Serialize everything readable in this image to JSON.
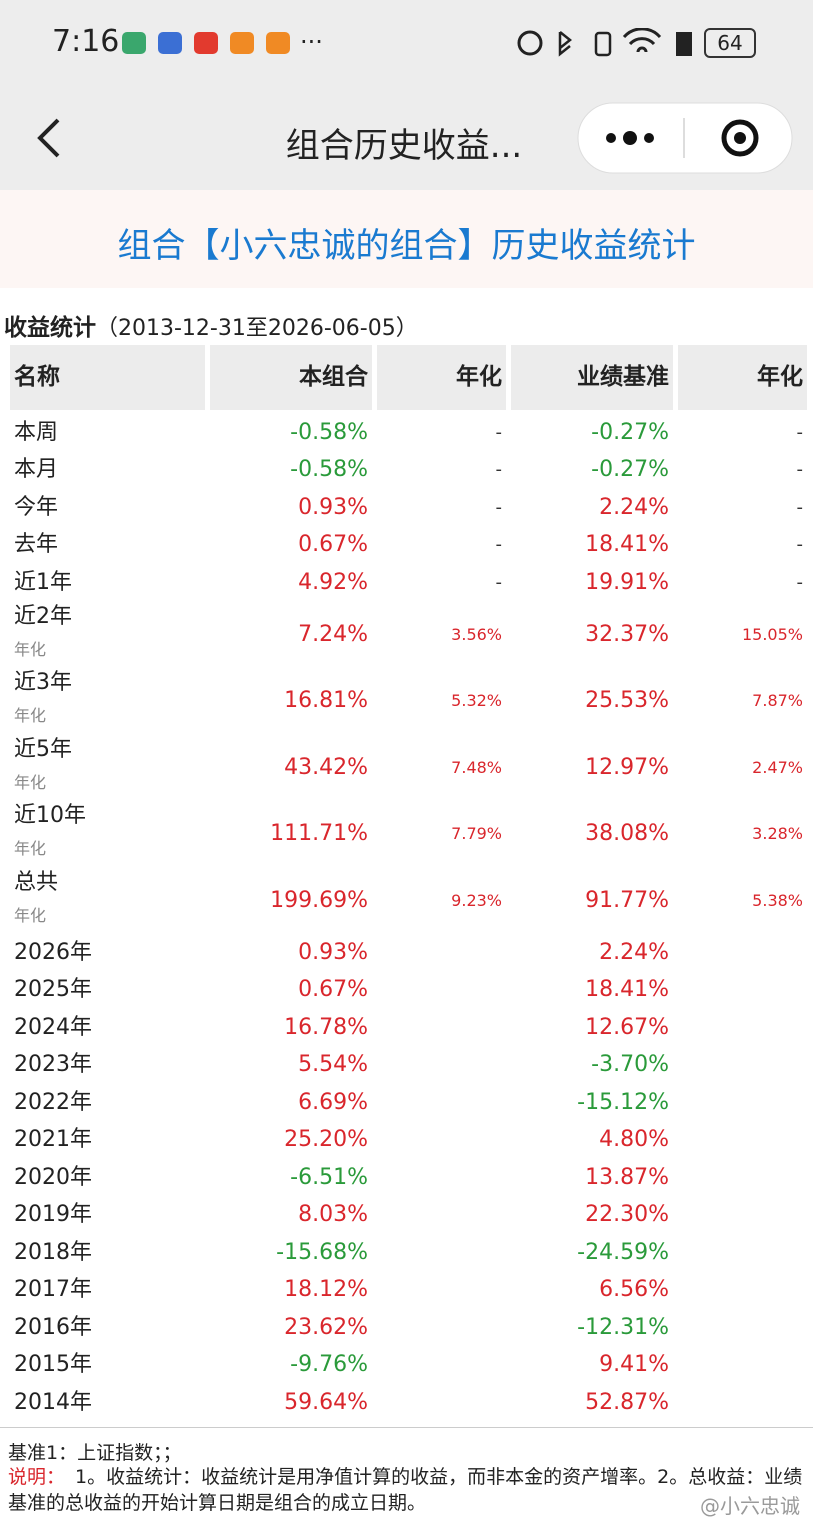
{
  "status_bar": {
    "time": "7:16",
    "more": "···",
    "battery": "64"
  },
  "nav": {
    "title": "组合历史收益..."
  },
  "banner": {
    "title": "组合【小六忠诚的组合】历史收益统计"
  },
  "section": {
    "title": "收益统计",
    "range": "（2013-12-31至2026-06-05）"
  },
  "table": {
    "headers": [
      "名称",
      "本组合",
      "年化",
      "业绩基准",
      "年化"
    ],
    "rows": [
      {
        "name": "本周",
        "portfolio": "-0.58%",
        "annual": "-",
        "benchmark": "-0.27%",
        "benchmark_annual": "-"
      },
      {
        "name": "本月",
        "portfolio": "-0.58%",
        "annual": "-",
        "benchmark": "-0.27%",
        "benchmark_annual": "-"
      },
      {
        "name": "今年",
        "portfolio": "0.93%",
        "annual": "-",
        "benchmark": "2.24%",
        "benchmark_annual": "-"
      },
      {
        "name": "去年",
        "portfolio": "0.67%",
        "annual": "-",
        "benchmark": "18.41%",
        "benchmark_annual": "-"
      },
      {
        "name": "近1年",
        "portfolio": "4.92%",
        "annual": "-",
        "benchmark": "19.91%",
        "benchmark_annual": "-"
      },
      {
        "name": "近2年",
        "note": "年化",
        "portfolio": "7.24%",
        "annual": "3.56%",
        "benchmark": "32.37%",
        "benchmark_annual": "15.05%"
      },
      {
        "name": "近3年",
        "note": "年化",
        "portfolio": "16.81%",
        "annual": "5.32%",
        "benchmark": "25.53%",
        "benchmark_annual": "7.87%"
      },
      {
        "name": "近5年",
        "note": "年化",
        "portfolio": "43.42%",
        "annual": "7.48%",
        "benchmark": "12.97%",
        "benchmark_annual": "2.47%"
      },
      {
        "name": "近10年",
        "note": "年化",
        "portfolio": "111.71%",
        "annual": "7.79%",
        "benchmark": "38.08%",
        "benchmark_annual": "3.28%"
      },
      {
        "name": "总共",
        "note": "年化",
        "portfolio": "199.69%",
        "annual": "9.23%",
        "benchmark": "91.77%",
        "benchmark_annual": "5.38%"
      },
      {
        "name": "2026年",
        "portfolio": "0.93%",
        "benchmark": "2.24%"
      },
      {
        "name": "2025年",
        "portfolio": "0.67%",
        "benchmark": "18.41%"
      },
      {
        "name": "2024年",
        "portfolio": "16.78%",
        "benchmark": "12.67%"
      },
      {
        "name": "2023年",
        "portfolio": "5.54%",
        "benchmark": "-3.70%"
      },
      {
        "name": "2022年",
        "portfolio": "6.69%",
        "benchmark": "-15.12%"
      },
      {
        "name": "2021年",
        "portfolio": "25.20%",
        "benchmark": "4.80%"
      },
      {
        "name": "2020年",
        "portfolio": "-6.51%",
        "benchmark": "13.87%"
      },
      {
        "name": "2019年",
        "portfolio": "8.03%",
        "benchmark": "22.30%"
      },
      {
        "name": "2018年",
        "portfolio": "-15.68%",
        "benchmark": "-24.59%"
      },
      {
        "name": "2017年",
        "portfolio": "18.12%",
        "benchmark": "6.56%"
      },
      {
        "name": "2016年",
        "portfolio": "23.62%",
        "benchmark": "-12.31%"
      },
      {
        "name": "2015年",
        "portfolio": "-9.76%",
        "benchmark": "9.41%"
      },
      {
        "name": "2014年",
        "portfolio": "59.64%",
        "benchmark": "52.87%"
      }
    ]
  },
  "footer": {
    "benchmark_note": "基准1：上证指数；；",
    "label": "说明：",
    "text": "1。收益统计：收益统计是用净值计算的收益，而非本金的资产增率。2。总收益：业绩基准的总收益的开始计算日期是组合的成立日期。",
    "watermark": "@小六忠诚"
  }
}
